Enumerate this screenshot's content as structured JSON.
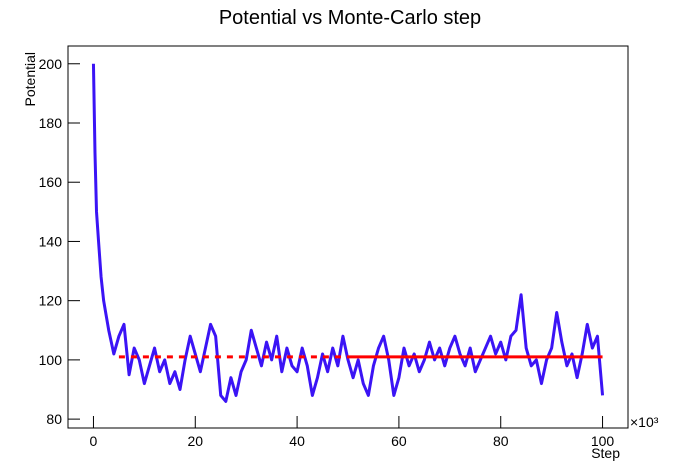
{
  "chart_data": {
    "type": "line",
    "title": "Potential vs Monte-Carlo step",
    "x_label": "Step",
    "y_label": "Potential",
    "x_scale": "×10³",
    "xlim": [
      -5,
      105
    ],
    "xticks": [
      0,
      20,
      40,
      60,
      80,
      100
    ],
    "ylim": [
      77,
      206
    ],
    "yticks": [
      80,
      100,
      120,
      140,
      160,
      180,
      200
    ],
    "grid": false,
    "series": [
      {
        "color": "#3b14f5",
        "dashed": false,
        "x": [
          0,
          0.3,
          0.6,
          1,
          1.5,
          2,
          2.5,
          3,
          3.5,
          4,
          5,
          6,
          7,
          8,
          9,
          10,
          11,
          12,
          13,
          14,
          15,
          16,
          17,
          18,
          19,
          20,
          21,
          22,
          23,
          24,
          25,
          26,
          27,
          28,
          29,
          30,
          31,
          32,
          33,
          34,
          35,
          36,
          37,
          38,
          39,
          40,
          41,
          42,
          43,
          44,
          45,
          46,
          47,
          48,
          49,
          50,
          51,
          52,
          53,
          54,
          55,
          56,
          57,
          58,
          59,
          60,
          61,
          62,
          63,
          64,
          65,
          66,
          67,
          68,
          69,
          70,
          71,
          72,
          73,
          74,
          75,
          76,
          77,
          78,
          79,
          80,
          81,
          82,
          83,
          84,
          85,
          86,
          87,
          88,
          89,
          90,
          91,
          92,
          93,
          94,
          95,
          96,
          97,
          98,
          99,
          100
        ],
        "values": [
          200,
          170,
          150,
          140,
          128,
          120,
          115,
          110,
          106,
          102,
          108,
          112,
          95,
          104,
          100,
          92,
          98,
          104,
          96,
          100,
          92,
          96,
          90,
          100,
          108,
          102,
          96,
          104,
          112,
          108,
          88,
          86,
          94,
          88,
          96,
          100,
          110,
          104,
          98,
          106,
          100,
          108,
          96,
          104,
          98,
          96,
          104,
          98,
          88,
          94,
          102,
          96,
          104,
          98,
          108,
          100,
          94,
          100,
          92,
          88,
          98,
          104,
          108,
          100,
          88,
          94,
          104,
          98,
          102,
          96,
          100,
          106,
          100,
          104,
          98,
          104,
          108,
          102,
          98,
          104,
          96,
          100,
          104,
          108,
          102,
          106,
          100,
          108,
          110,
          122,
          104,
          98,
          100,
          92,
          100,
          104,
          116,
          106,
          98,
          102,
          94,
          102,
          112,
          104,
          108,
          88
        ]
      },
      {
        "color": "#ff0000",
        "dashed": true,
        "x": [
          5,
          50
        ],
        "values": [
          101,
          101
        ]
      },
      {
        "color": "#ff0000",
        "dashed": false,
        "x": [
          50,
          100
        ],
        "values": [
          101,
          101
        ]
      }
    ]
  }
}
